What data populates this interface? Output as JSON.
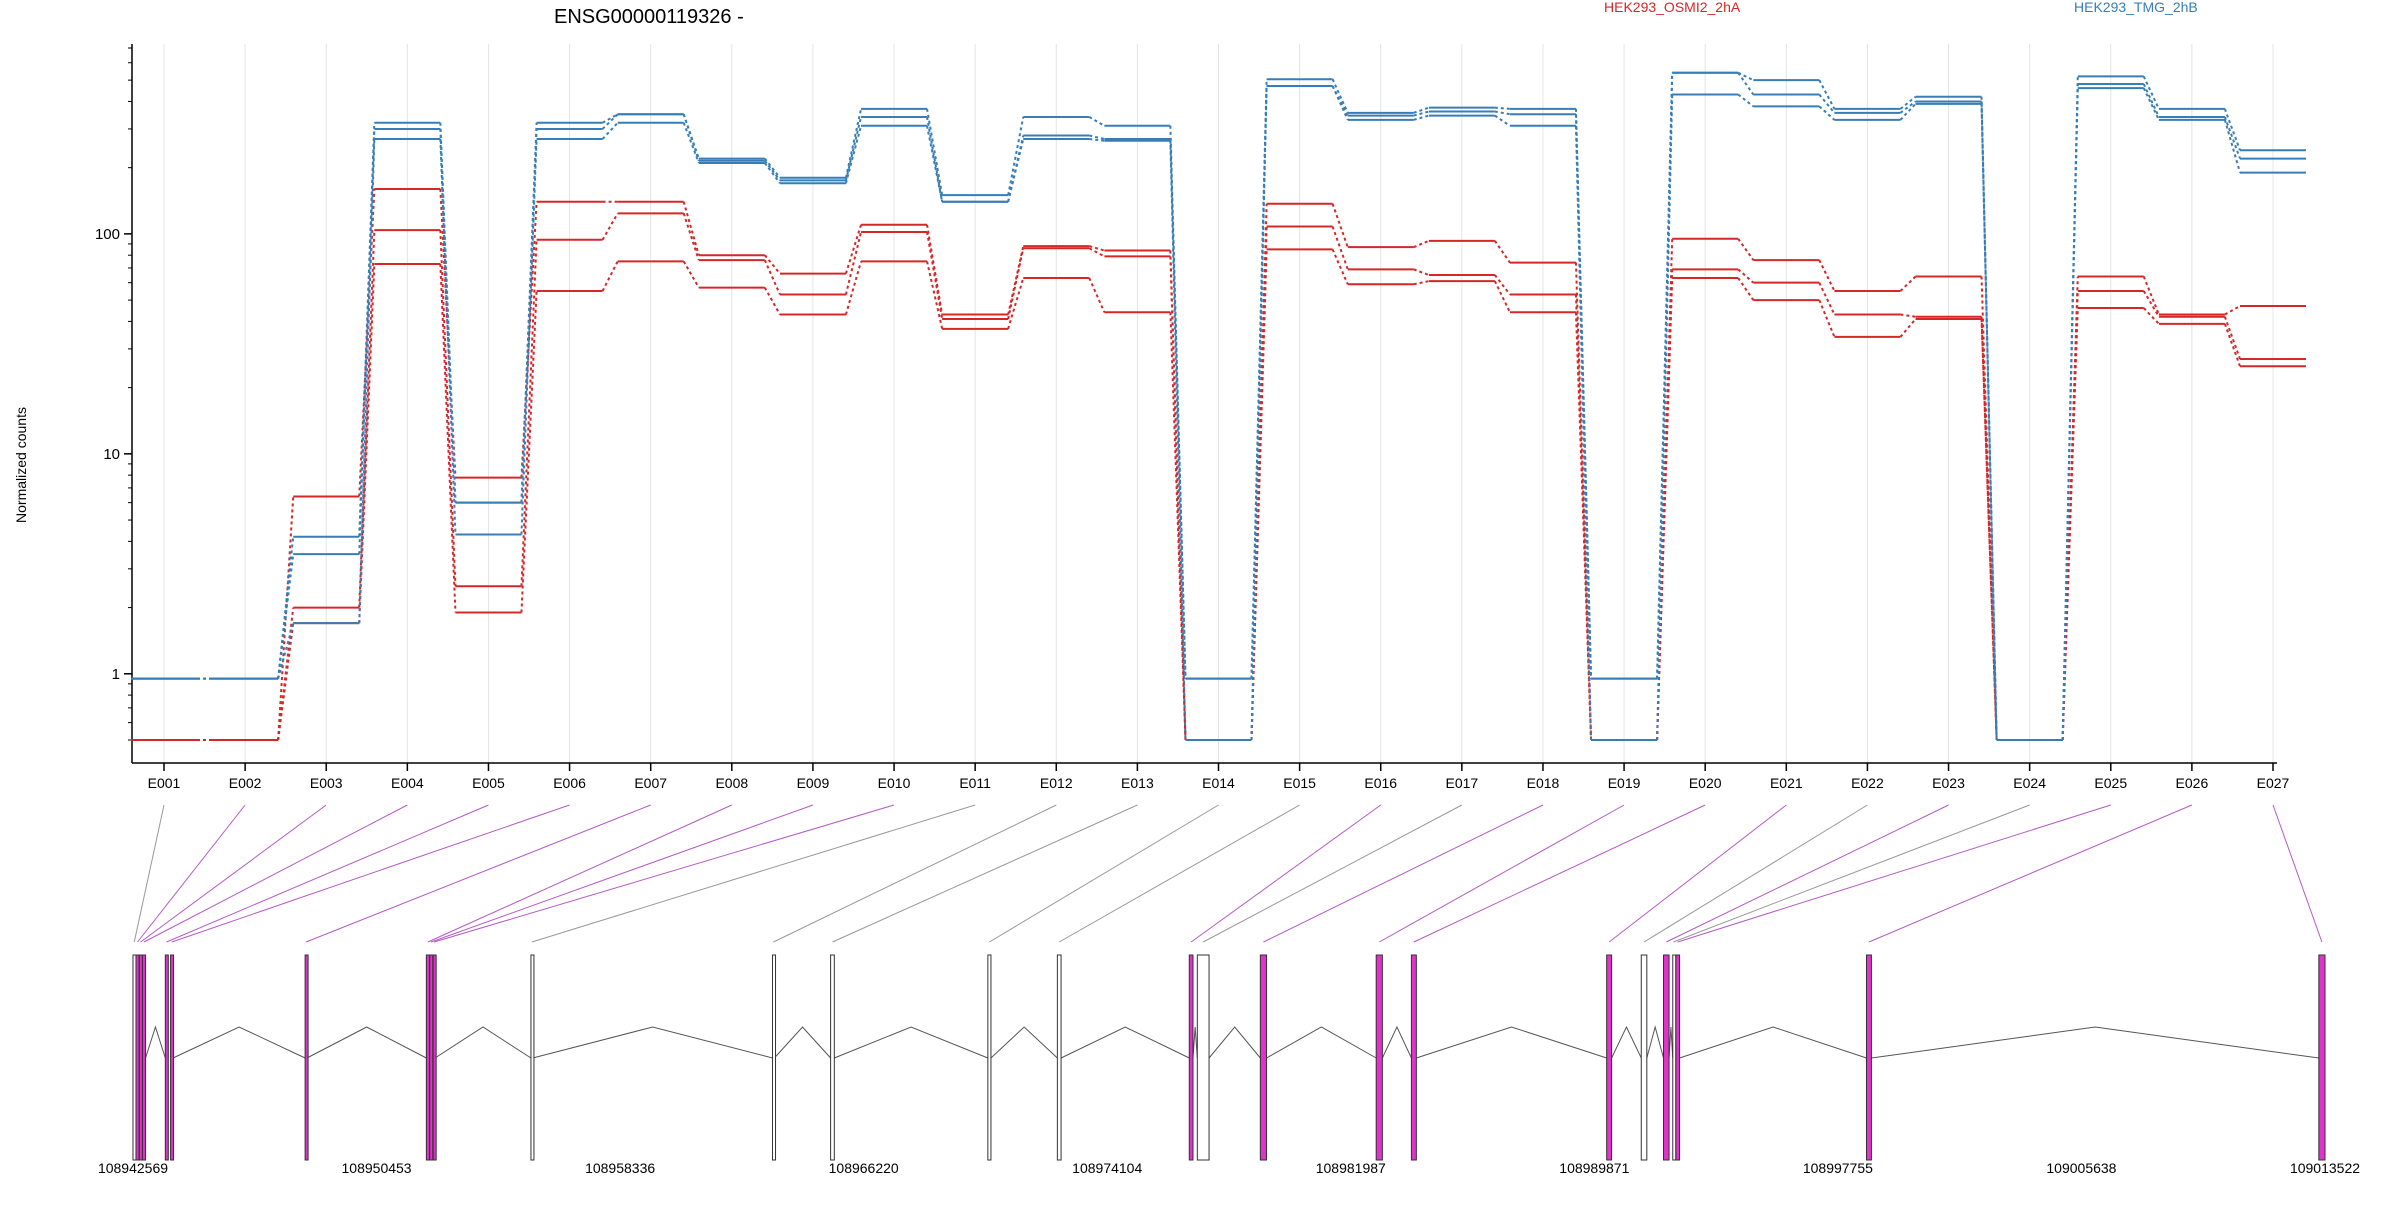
{
  "chart_data": {
    "type": "line",
    "title": "ENSG00000119326 -",
    "ylabel": "Normalized counts",
    "xlabel": "",
    "yscale": "log",
    "ylim": [
      0.5,
      700
    ],
    "yticks": [
      1,
      10,
      100
    ],
    "grid": "vertical gridlines at exon centers",
    "categories": [
      "E001",
      "E002",
      "E003",
      "E004",
      "E005",
      "E006",
      "E007",
      "E008",
      "E009",
      "E010",
      "E011",
      "E012",
      "E013",
      "E014",
      "E015",
      "E016",
      "E017",
      "E018",
      "E019",
      "E020",
      "E021",
      "E022",
      "E023",
      "E024",
      "E025",
      "E026",
      "E027"
    ],
    "series": [
      {
        "name": "HEK293_OSMI2_2hA",
        "color": "#d62728",
        "values": [
          0.5,
          0.5,
          6.4,
          160,
          7.8,
          140,
          140,
          80,
          66,
          110,
          43,
          88,
          84,
          0.5,
          137,
          87,
          93,
          74,
          0.5,
          95,
          76,
          55,
          64,
          0.5,
          64,
          43,
          47
        ]
      },
      {
        "name": "HEK293_OSMI2_2hA",
        "color": "#d62728",
        "values": [
          0.5,
          0.5,
          2.0,
          104,
          2.5,
          94,
          124,
          76,
          53,
          102,
          41,
          86,
          79,
          0.5,
          108,
          69,
          65,
          53,
          0.5,
          69,
          60,
          43,
          42,
          0.5,
          55,
          42,
          27
        ]
      },
      {
        "name": "HEK293_OSMI2_2hA",
        "color": "#d62728",
        "values": [
          0.5,
          0.5,
          1.7,
          73,
          1.9,
          55,
          75,
          57,
          43,
          75,
          37,
          63,
          44,
          0.5,
          85,
          59,
          61,
          44,
          0.5,
          63,
          50,
          34,
          41,
          0.5,
          46,
          39,
          25
        ]
      },
      {
        "name": "HEK293_TMG_2hB",
        "color": "#377eb8",
        "values": [
          0.95,
          0.95,
          4.2,
          320,
          6.0,
          320,
          350,
          220,
          180,
          370,
          150,
          340,
          310,
          0.95,
          505,
          355,
          375,
          370,
          0.95,
          540,
          500,
          370,
          420,
          0.5,
          520,
          370,
          240
        ]
      },
      {
        "name": "HEK293_TMG_2hB",
        "color": "#377eb8",
        "values": [
          0.95,
          0.95,
          3.5,
          300,
          6.0,
          300,
          350,
          215,
          175,
          340,
          140,
          280,
          270,
          0.95,
          470,
          345,
          360,
          350,
          0.95,
          540,
          430,
          355,
          400,
          0.5,
          480,
          340,
          220
        ]
      },
      {
        "name": "HEK293_TMG_2hB",
        "color": "#377eb8",
        "values": [
          0.95,
          0.95,
          1.7,
          270,
          4.3,
          270,
          320,
          210,
          170,
          310,
          140,
          270,
          265,
          0.5,
          470,
          330,
          345,
          310,
          0.5,
          430,
          380,
          330,
          390,
          0.5,
          460,
          330,
          190
        ]
      }
    ],
    "legend": [
      {
        "label": "HEK293_OSMI2_2hA",
        "color": "#d62728"
      },
      {
        "label": "HEK293_TMG_2hB",
        "color": "#377eb8"
      }
    ],
    "gene_model": {
      "genomic_start": 108942569,
      "genomic_end": 109013522,
      "tick_labels": [
        "108942569",
        "108950453",
        "108958336",
        "108966220",
        "108974104",
        "108981987",
        "108989871",
        "108997755",
        "109005638",
        "109013522"
      ],
      "highlight_color": "#e033cc",
      "exons": [
        {
          "id": "E001",
          "start": 108942569,
          "end": 108942649,
          "highlight": false
        },
        {
          "id": "E002",
          "start": 108942665,
          "end": 108942765,
          "highlight": true
        },
        {
          "id": "E003",
          "start": 108942775,
          "end": 108942855,
          "highlight": true
        },
        {
          "id": "E004",
          "start": 108942875,
          "end": 108942975,
          "highlight": true
        },
        {
          "id": "E005",
          "start": 108943615,
          "end": 108943695,
          "highlight": true
        },
        {
          "id": "E006",
          "start": 108943785,
          "end": 108943865,
          "highlight": true
        },
        {
          "id": "E007",
          "start": 108948140,
          "end": 108948200,
          "highlight": true
        },
        {
          "id": "E008",
          "start": 108952065,
          "end": 108952165,
          "highlight": true
        },
        {
          "id": "E009",
          "start": 108952175,
          "end": 108952255,
          "highlight": true
        },
        {
          "id": "E010",
          "start": 108952285,
          "end": 108952345,
          "highlight": true
        },
        {
          "id": "E011",
          "start": 108955450,
          "end": 108955510,
          "highlight": false
        },
        {
          "id": "E012",
          "start": 108963270,
          "end": 108963330,
          "highlight": false
        },
        {
          "id": "E013",
          "start": 108965150,
          "end": 108965270,
          "highlight": false
        },
        {
          "id": "E014",
          "start": 108970240,
          "end": 108970340,
          "highlight": false
        },
        {
          "id": "E015",
          "start": 108972490,
          "end": 108972610,
          "highlight": false
        },
        {
          "id": "E016",
          "start": 108976760,
          "end": 108976880,
          "highlight": true
        },
        {
          "id": "E017",
          "start": 108977020,
          "end": 108977400,
          "highlight": false
        },
        {
          "id": "E018",
          "start": 108979060,
          "end": 108979260,
          "highlight": true
        },
        {
          "id": "E019",
          "start": 108982810,
          "end": 108983010,
          "highlight": true
        },
        {
          "id": "E020",
          "start": 108983950,
          "end": 108984110,
          "highlight": true
        },
        {
          "id": "E021",
          "start": 108990270,
          "end": 108990430,
          "highlight": true
        },
        {
          "id": "E022",
          "start": 108991390,
          "end": 108991570,
          "highlight": false
        },
        {
          "id": "E023",
          "start": 108992110,
          "end": 108992290,
          "highlight": true
        },
        {
          "id": "E024",
          "start": 108992410,
          "end": 108992450,
          "highlight": false
        },
        {
          "id": "E025",
          "start": 108992510,
          "end": 108992630,
          "highlight": true
        },
        {
          "id": "E026",
          "start": 108998680,
          "end": 108998840,
          "highlight": true
        },
        {
          "id": "E027",
          "start": 109013322,
          "end": 109013522,
          "highlight": true
        }
      ]
    }
  }
}
